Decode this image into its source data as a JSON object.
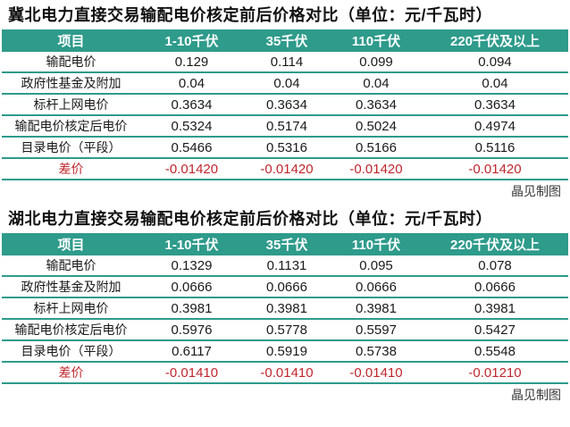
{
  "colors": {
    "header_bg": "#2e9b8b",
    "divider": "#2e9b8b",
    "diff_text": "#c0262d",
    "header_text": "#ffffff",
    "body_text": "#1a1a1a"
  },
  "tables": [
    {
      "title": "冀北电力直接交易输配电价核定前后价格对比（单位：元/千瓦时）",
      "headers": [
        "项目",
        "1-10千伏",
        "35千伏",
        "110千伏",
        "220千伏及以上"
      ],
      "rows": [
        {
          "label": "输配电价",
          "values": [
            "0.129",
            "0.114",
            "0.099",
            "0.094"
          ],
          "highlight": false
        },
        {
          "label": "政府性基金及附加",
          "values": [
            "0.04",
            "0.04",
            "0.04",
            "0.04"
          ],
          "highlight": false
        },
        {
          "label": "标杆上网电价",
          "values": [
            "0.3634",
            "0.3634",
            "0.3634",
            "0.3634"
          ],
          "highlight": false
        },
        {
          "label": "输配电价核定后电价",
          "values": [
            "0.5324",
            "0.5174",
            "0.5024",
            "0.4974"
          ],
          "highlight": false
        },
        {
          "label": "目录电价（平段）",
          "values": [
            "0.5466",
            "0.5316",
            "0.5166",
            "0.5116"
          ],
          "highlight": false
        },
        {
          "label": "差价",
          "values": [
            "-0.01420",
            "-0.01420",
            "-0.01420",
            "-0.01420"
          ],
          "highlight": true
        }
      ],
      "credit": "晶见制图"
    },
    {
      "title": "湖北电力直接交易输配电价核定前后价格对比（单位：元/千瓦时）",
      "headers": [
        "项目",
        "1-10千伏",
        "35千伏",
        "110千伏",
        "220千伏及以上"
      ],
      "rows": [
        {
          "label": "输配电价",
          "values": [
            "0.1329",
            "0.1131",
            "0.095",
            "0.078"
          ],
          "highlight": false
        },
        {
          "label": "政府性基金及附加",
          "values": [
            "0.0666",
            "0.0666",
            "0.0666",
            "0.0666"
          ],
          "highlight": false
        },
        {
          "label": "标杆上网电价",
          "values": [
            "0.3981",
            "0.3981",
            "0.3981",
            "0.3981"
          ],
          "highlight": false
        },
        {
          "label": "输配电价核定后电价",
          "values": [
            "0.5976",
            "0.5778",
            "0.5597",
            "0.5427"
          ],
          "highlight": false
        },
        {
          "label": "目录电价（平段）",
          "values": [
            "0.6117",
            "0.5919",
            "0.5738",
            "0.5548"
          ],
          "highlight": false
        },
        {
          "label": "差价",
          "values": [
            "-0.01410",
            "-0.01410",
            "-0.01410",
            "-0.01210"
          ],
          "highlight": true
        }
      ],
      "credit": "晶见制图"
    }
  ],
  "chart_data": [
    {
      "type": "table",
      "title": "冀北电力直接交易输配电价核定前后价格对比（单位：元/千瓦时）",
      "columns": [
        "项目",
        "1-10千伏",
        "35千伏",
        "110千伏",
        "220千伏及以上"
      ],
      "rows": [
        [
          "输配电价",
          0.129,
          0.114,
          0.099,
          0.094
        ],
        [
          "政府性基金及附加",
          0.04,
          0.04,
          0.04,
          0.04
        ],
        [
          "标杆上网电价",
          0.3634,
          0.3634,
          0.3634,
          0.3634
        ],
        [
          "输配电价核定后电价",
          0.5324,
          0.5174,
          0.5024,
          0.4974
        ],
        [
          "目录电价（平段）",
          0.5466,
          0.5316,
          0.5166,
          0.5116
        ],
        [
          "差价",
          -0.0142,
          -0.0142,
          -0.0142,
          -0.0142
        ]
      ],
      "legend_position": "none",
      "grid": "horizontal-teal-rules"
    },
    {
      "type": "table",
      "title": "湖北电力直接交易输配电价核定前后价格对比（单位：元/千瓦时）",
      "columns": [
        "项目",
        "1-10千伏",
        "35千伏",
        "110千伏",
        "220千伏及以上"
      ],
      "rows": [
        [
          "输配电价",
          0.1329,
          0.1131,
          0.095,
          0.078
        ],
        [
          "政府性基金及附加",
          0.0666,
          0.0666,
          0.0666,
          0.0666
        ],
        [
          "标杆上网电价",
          0.3981,
          0.3981,
          0.3981,
          0.3981
        ],
        [
          "输配电价核定后电价",
          0.5976,
          0.5778,
          0.5597,
          0.5427
        ],
        [
          "目录电价（平段）",
          0.6117,
          0.5919,
          0.5738,
          0.5548
        ],
        [
          "差价",
          -0.0141,
          -0.0141,
          -0.0141,
          -0.0121
        ]
      ],
      "legend_position": "none",
      "grid": "horizontal-teal-rules"
    }
  ]
}
